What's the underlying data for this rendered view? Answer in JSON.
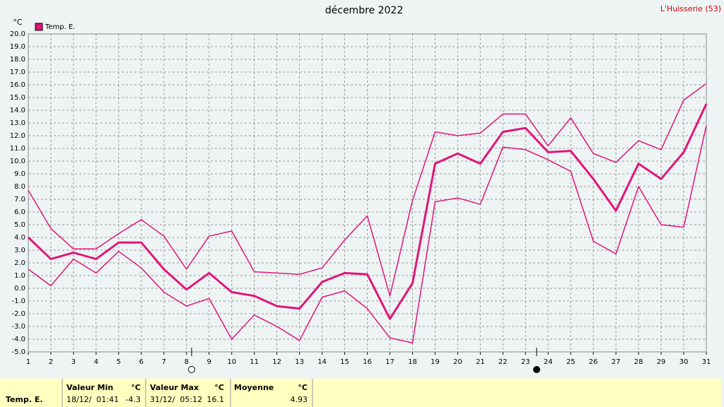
{
  "chart_data": {
    "type": "line",
    "title": "décembre 2022",
    "station": "L'Huisserie (53)",
    "y_unit": "°C",
    "x": [
      1,
      2,
      3,
      4,
      5,
      6,
      7,
      8,
      9,
      10,
      11,
      12,
      13,
      14,
      15,
      16,
      17,
      18,
      19,
      20,
      21,
      22,
      23,
      24,
      25,
      26,
      27,
      28,
      29,
      30,
      31
    ],
    "xlim": [
      1,
      31
    ],
    "xticks": [
      1,
      2,
      3,
      4,
      5,
      6,
      7,
      8,
      9,
      10,
      11,
      12,
      13,
      14,
      15,
      16,
      17,
      18,
      19,
      20,
      21,
      22,
      23,
      24,
      25,
      26,
      27,
      28,
      29,
      30,
      31
    ],
    "ylim": [
      -5,
      20
    ],
    "yticks": [
      {
        "value": -5,
        "label": "-5.0"
      },
      {
        "value": -4,
        "label": "-4.0"
      },
      {
        "value": -3,
        "label": "-3.0"
      },
      {
        "value": -2,
        "label": "-2.0"
      },
      {
        "value": -1,
        "label": "-1.0"
      },
      {
        "value": 0,
        "label": "0.0"
      },
      {
        "value": 1,
        "label": "1.0"
      },
      {
        "value": 2,
        "label": "2.0"
      },
      {
        "value": 3,
        "label": "3.0"
      },
      {
        "value": 4,
        "label": "4.0"
      },
      {
        "value": 5,
        "label": "5.0"
      },
      {
        "value": 6,
        "label": "6.0"
      },
      {
        "value": 7,
        "label": "7.0"
      },
      {
        "value": 8,
        "label": "8.0"
      },
      {
        "value": 9,
        "label": "9.0"
      },
      {
        "value": 10,
        "label": "10.0"
      },
      {
        "value": 11,
        "label": "11.0"
      },
      {
        "value": 12,
        "label": "12.0"
      },
      {
        "value": 13,
        "label": "13.0"
      },
      {
        "value": 14,
        "label": "14.0"
      },
      {
        "value": 15,
        "label": "15.0"
      },
      {
        "value": 16,
        "label": "16.0"
      },
      {
        "value": 17,
        "label": "17.0"
      },
      {
        "value": 18,
        "label": "18.0"
      },
      {
        "value": 19,
        "label": "19.0"
      },
      {
        "value": 20,
        "label": "20.0"
      }
    ],
    "grid": true,
    "series": [
      {
        "name": "Temp. E.",
        "color": "#e0167a",
        "line_width": 3,
        "values": [
          4.0,
          2.3,
          2.8,
          2.3,
          3.6,
          3.6,
          1.5,
          -0.1,
          1.2,
          -0.3,
          -0.6,
          -1.4,
          -1.6,
          0.5,
          1.2,
          1.1,
          -2.4,
          0.4,
          9.8,
          10.6,
          9.8,
          12.3,
          12.6,
          10.7,
          10.8,
          8.6,
          6.1,
          9.8,
          8.6,
          10.7,
          14.5
        ]
      },
      {
        "color": "#e0167a",
        "line_width": 1.5,
        "values": [
          7.7,
          4.7,
          3.1,
          3.1,
          4.3,
          5.4,
          4.1,
          1.5,
          4.1,
          4.5,
          1.3,
          1.2,
          1.1,
          1.6,
          3.8,
          5.7,
          -0.6,
          6.9,
          12.3,
          12.0,
          12.2,
          13.7,
          13.7,
          11.2,
          13.4,
          10.6,
          9.9,
          11.6,
          10.9,
          14.8,
          16.1
        ]
      },
      {
        "color": "#e0167a",
        "line_width": 1.5,
        "values": [
          1.5,
          0.2,
          2.3,
          1.2,
          2.9,
          1.6,
          -0.3,
          -1.4,
          -0.8,
          -4.0,
          -2.1,
          -3.0,
          -4.1,
          -0.7,
          -0.2,
          -1.6,
          -3.9,
          -4.3,
          6.8,
          7.1,
          6.6,
          11.1,
          10.9,
          10.1,
          9.2,
          3.7,
          2.7,
          8.0,
          5.0,
          4.8,
          12.8
        ]
      }
    ]
  },
  "footer": {
    "label": "Temp. E.",
    "min": {
      "title": "Valeur Min",
      "unit": "°C",
      "when": "18/12/  01:41",
      "value": "-4.3"
    },
    "max": {
      "title": "Valeur Max",
      "unit": "°C",
      "when": "31/12/  05:12",
      "value": "16.1"
    },
    "mean": {
      "title": "Moyenne",
      "unit": "°C",
      "value": "4.93"
    }
  }
}
